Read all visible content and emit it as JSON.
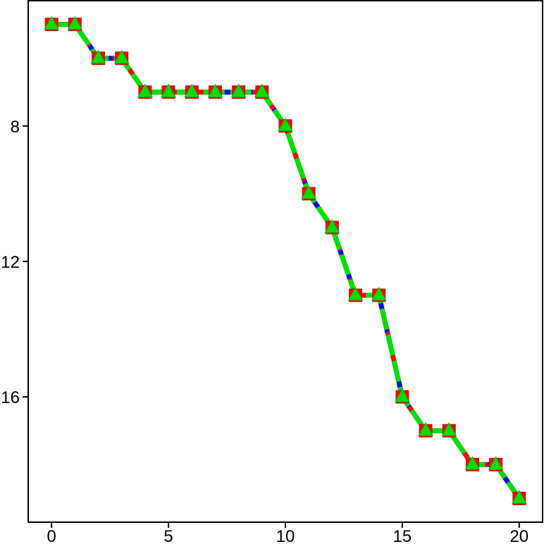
{
  "chart_data": {
    "type": "line",
    "x": [
      0,
      1,
      2,
      3,
      4,
      5,
      6,
      7,
      8,
      9,
      10,
      11,
      12,
      13,
      14,
      15,
      16,
      17,
      18,
      19,
      20
    ],
    "series": [
      {
        "color": "#ff0000",
        "marker": "square",
        "values": [
          5,
          5,
          6,
          6,
          7,
          7,
          7,
          7,
          7,
          7,
          8,
          10,
          11,
          13,
          13,
          16,
          17,
          17,
          18,
          18,
          19
        ]
      },
      {
        "color": "#0000ff",
        "marker": "none",
        "values": [
          5,
          5,
          6,
          6,
          7,
          7,
          7,
          7,
          7,
          7,
          8,
          10,
          11,
          13,
          13,
          16,
          17,
          17,
          18,
          18,
          19
        ]
      },
      {
        "color": "#00dd00",
        "marker": "triangle",
        "values": [
          5,
          5,
          6,
          6,
          7,
          7,
          7,
          7,
          7,
          7,
          8,
          10,
          11,
          13,
          13,
          16,
          17,
          17,
          18,
          18,
          19
        ]
      }
    ],
    "xlim": [
      -1,
      21
    ],
    "xticks": [
      0,
      5,
      10,
      15,
      20
    ],
    "ylim": [
      19.7,
      4.3
    ],
    "yticks": [
      8,
      12,
      16
    ]
  }
}
